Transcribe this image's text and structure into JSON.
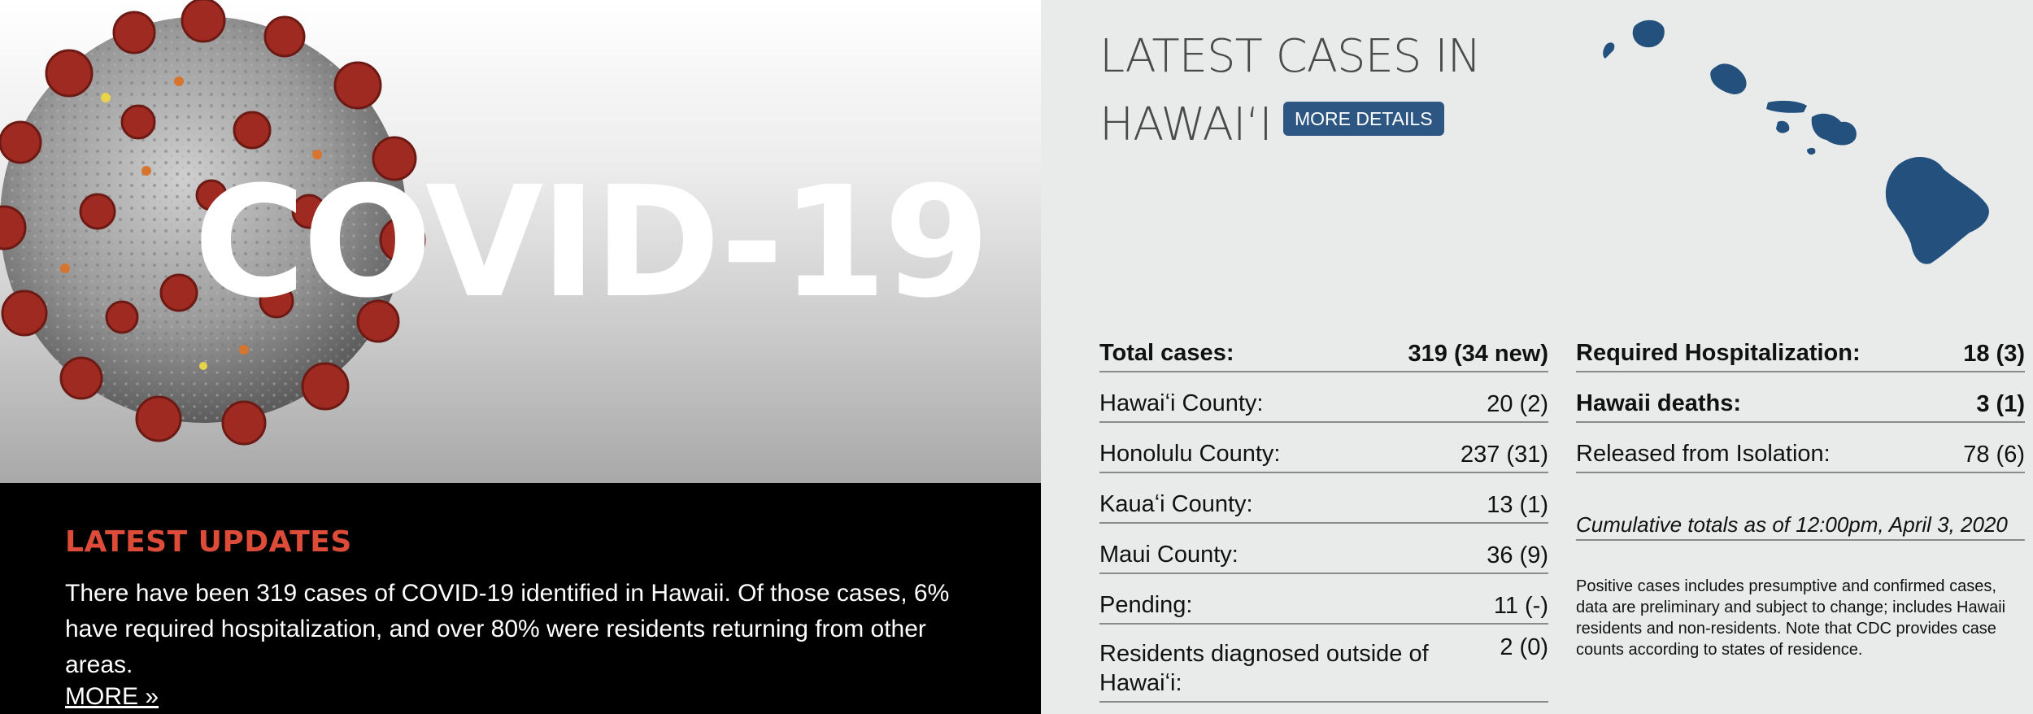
{
  "hero": {
    "title": "COVID-19"
  },
  "updates": {
    "heading": "LATEST UPDATES",
    "text": "There have been 319 cases of COVID-19 identified in Hawaii. Of those cases, 6% have required hospitalization, and over 80% were residents returning from other areas.",
    "more_link": "MORE »"
  },
  "panel": {
    "title_line1": "LATEST CASES IN",
    "title_line2": "HAWAIʻI",
    "more_details_button": "MORE DETAILS",
    "left_stats": [
      {
        "label": "Total cases:",
        "value": "319 (34 new)"
      },
      {
        "label": "Hawaiʻi County:",
        "value": "20 (2)"
      },
      {
        "label": "Honolulu County:",
        "value": "237 (31)"
      },
      {
        "label": "Kauaʻi County:",
        "value": "13 (1)"
      },
      {
        "label": "Maui County:",
        "value": "36 (9)"
      },
      {
        "label": "Pending:",
        "value": "11 (-)"
      },
      {
        "label": "Residents diagnosed outside of Hawaiʻi:",
        "value": "2 (0)"
      }
    ],
    "right_stats": [
      {
        "label": "Required Hospitalization:",
        "value": "18 (3)"
      },
      {
        "label": "Hawaii deaths:",
        "value": "3 (1)"
      },
      {
        "label": "Released from Isolation:",
        "value": "78 (6)"
      }
    ],
    "cumulative_note": "Cumulative totals as of 12:00pm, April 3, 2020",
    "disclaimer": "Positive cases includes presumptive and confirmed cases, data are preliminary and subject to change; includes Hawaii residents and non-residents. Note that CDC provides case counts according to states of residence."
  },
  "colors": {
    "accent_red": "#dd4b39",
    "button_blue": "#2d5683",
    "map_blue": "#23507c",
    "virus_red": "#9e2a22"
  },
  "icons": {
    "map": "hawaii-islands-map-icon",
    "virus": "coronavirus-illustration"
  }
}
